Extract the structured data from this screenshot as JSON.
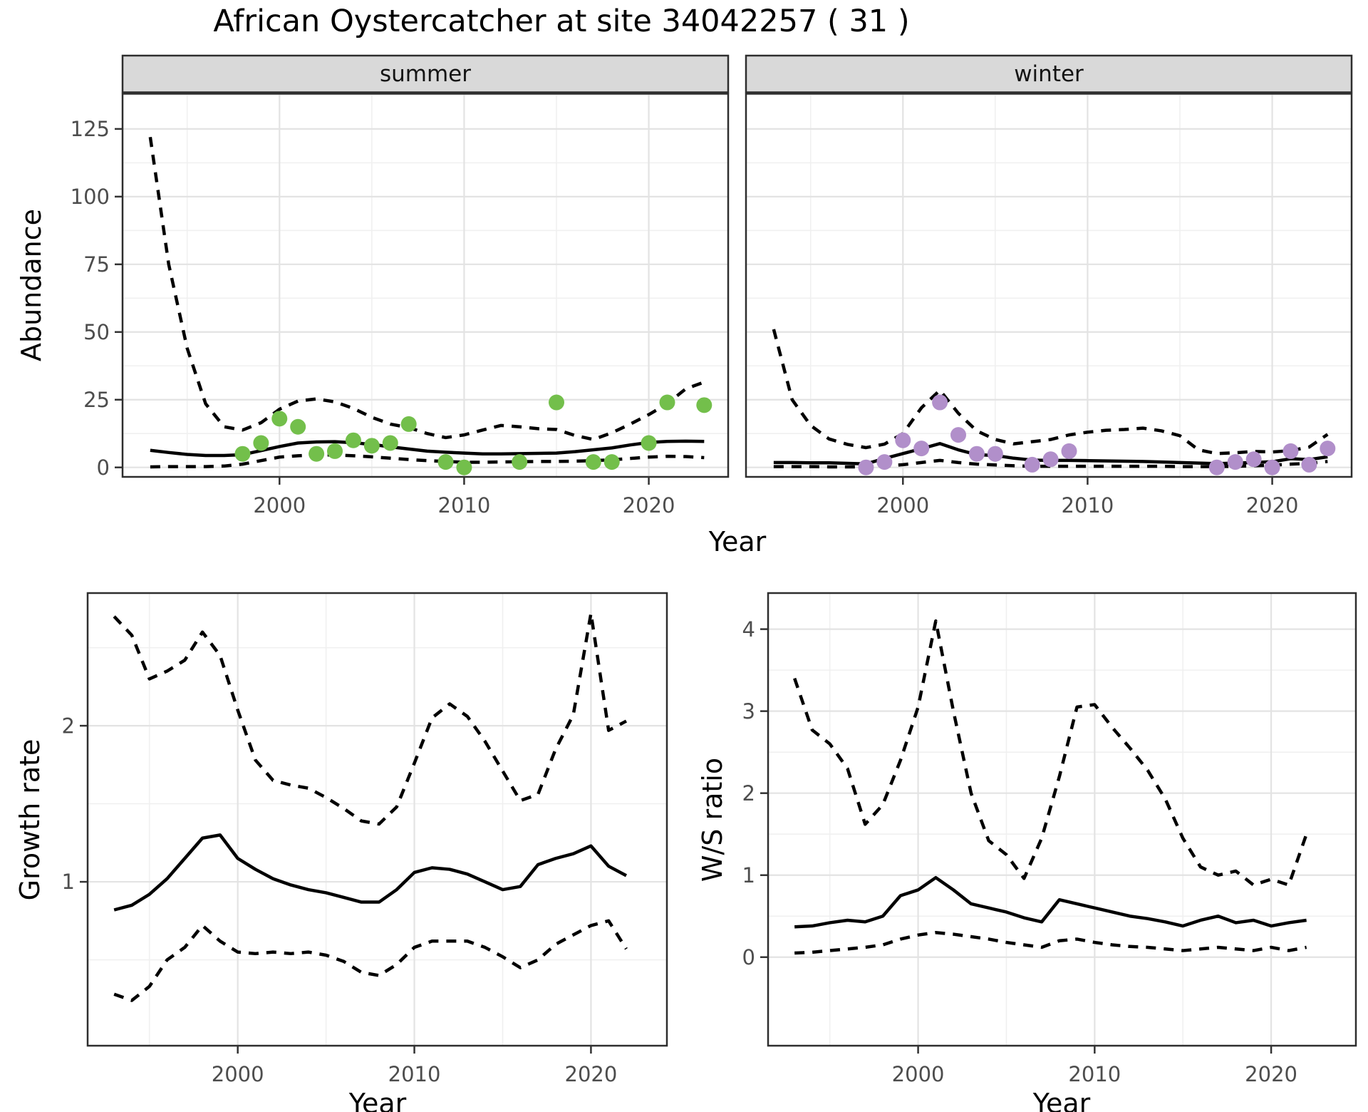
{
  "title": "African Oystercatcher at site 34042257 ( 31 )",
  "chart_data": [
    {
      "id": "abundance",
      "type": "line",
      "xlabel": "Year",
      "ylabel": "Abundance",
      "xlim": [
        1991.5,
        2024.3
      ],
      "ylim": [
        -3.5,
        138
      ],
      "x_ticks": [
        2000,
        2010,
        2020
      ],
      "x_minor": [
        1995,
        2005,
        2015
      ],
      "y_ticks": [
        0,
        25,
        50,
        75,
        100,
        125
      ],
      "y_minor": [
        12.5,
        37.5,
        62.5,
        87.5,
        112.5,
        137.5
      ],
      "grid": true,
      "legend": "none",
      "years": [
        1993,
        1994,
        1995,
        1996,
        1997,
        1998,
        1999,
        2000,
        2001,
        2002,
        2003,
        2004,
        2005,
        2006,
        2007,
        2008,
        2009,
        2010,
        2011,
        2012,
        2013,
        2014,
        2015,
        2016,
        2017,
        2018,
        2019,
        2020,
        2021,
        2022,
        2023
      ],
      "facets": [
        {
          "label": "summer",
          "point_color": "#73bf4b",
          "points_x": [
            1998,
            1999,
            2000,
            2001,
            2002,
            2003,
            2004,
            2005,
            2006,
            2007,
            2009,
            2010,
            2013,
            2015,
            2017,
            2018,
            2020,
            2021,
            2023
          ],
          "points_y": [
            5,
            9,
            18,
            15,
            5,
            6,
            10,
            8,
            9,
            16,
            2,
            0,
            2,
            24,
            2,
            2,
            9,
            24,
            23
          ],
          "fit": [
            6.3,
            5.5,
            4.8,
            4.4,
            4.4,
            4.7,
            6.2,
            7.7,
            9.0,
            9.4,
            9.5,
            9.1,
            8.5,
            7.6,
            6.8,
            6.0,
            5.6,
            5.3,
            5.0,
            5.0,
            5.1,
            5.2,
            5.3,
            5.8,
            6.5,
            7.2,
            8.3,
            9.2,
            9.6,
            9.7,
            9.6
          ],
          "upper": [
            122,
            75,
            44,
            23.5,
            15,
            13.8,
            16.5,
            21.5,
            24.5,
            25.3,
            24.2,
            21.8,
            18.5,
            16.0,
            14.7,
            12.5,
            11.0,
            12.0,
            13.8,
            15.5,
            15.0,
            14.3,
            14.0,
            11.8,
            10.3,
            12.8,
            16.0,
            19.5,
            23.5,
            29.0,
            31.5
          ],
          "lower": [
            0.2,
            0.3,
            0.3,
            0.3,
            0.5,
            1.2,
            2.5,
            3.8,
            4.3,
            4.6,
            4.6,
            4.3,
            3.9,
            3.4,
            2.9,
            2.5,
            2.2,
            1.9,
            1.9,
            2.0,
            2.1,
            2.2,
            2.2,
            2.3,
            2.5,
            2.8,
            3.3,
            3.8,
            4.1,
            4.0,
            3.6
          ]
        },
        {
          "label": "winter",
          "point_color": "#b18fca",
          "points_x": [
            1998,
            1999,
            2000,
            2001,
            2002,
            2003,
            2004,
            2005,
            2007,
            2008,
            2009,
            2017,
            2018,
            2019,
            2020,
            2021,
            2022,
            2023
          ],
          "points_y": [
            0,
            2,
            10,
            7,
            24,
            12,
            5,
            5,
            1,
            3,
            6,
            0,
            2,
            3,
            0,
            6,
            1,
            7
          ],
          "fit": [
            1.8,
            1.8,
            1.7,
            1.7,
            1.5,
            1.3,
            3.3,
            5.1,
            6.9,
            8.8,
            6.5,
            4.7,
            4.4,
            3.4,
            2.7,
            2.6,
            2.6,
            2.5,
            2.4,
            2.3,
            2.2,
            2.0,
            1.8,
            1.6,
            1.4,
            1.6,
            1.8,
            2.1,
            3.2,
            2.9,
            3.9
          ],
          "upper": [
            51,
            25,
            15.5,
            10.5,
            8.5,
            7.3,
            8.6,
            12.5,
            22,
            28.5,
            20,
            13.5,
            10.3,
            8.7,
            9.5,
            10.3,
            12,
            13,
            13.7,
            14,
            14.5,
            13.5,
            11.7,
            6.5,
            5.1,
            5.4,
            5.9,
            5.7,
            6.2,
            7.5,
            12.2
          ],
          "lower": [
            0.3,
            0.3,
            0.3,
            0.2,
            0.2,
            0.2,
            0.5,
            1.0,
            1.8,
            2.6,
            1.8,
            1.2,
            0.9,
            0.6,
            0.4,
            0.4,
            0.4,
            0.4,
            0.4,
            0.4,
            0.4,
            0.4,
            0.3,
            0.3,
            0.3,
            0.4,
            0.6,
            0.8,
            1.2,
            1.5,
            2.2
          ]
        }
      ]
    },
    {
      "id": "growth_rate",
      "type": "line",
      "xlabel": "Year",
      "ylabel": "Growth rate",
      "xlim": [
        1991.5,
        2024.3
      ],
      "ylim": [
        -0.05,
        2.85
      ],
      "x_ticks": [
        2000,
        2010,
        2020
      ],
      "x_minor": [
        1995,
        2005,
        2015
      ],
      "y_ticks": [
        1,
        2
      ],
      "y_minor": [
        0.5,
        1.5,
        2.5
      ],
      "grid": true,
      "legend": "none",
      "years": [
        1993,
        1994,
        1995,
        1996,
        1997,
        1998,
        1999,
        2000,
        2001,
        2002,
        2003,
        2004,
        2005,
        2006,
        2007,
        2008,
        2009,
        2010,
        2011,
        2012,
        2013,
        2014,
        2015,
        2016,
        2017,
        2018,
        2019,
        2020,
        2021,
        2022
      ],
      "fit": [
        0.82,
        0.85,
        0.92,
        1.02,
        1.15,
        1.28,
        1.3,
        1.15,
        1.08,
        1.02,
        0.98,
        0.95,
        0.93,
        0.9,
        0.87,
        0.87,
        0.95,
        1.06,
        1.09,
        1.08,
        1.05,
        1.0,
        0.95,
        0.97,
        1.11,
        1.15,
        1.18,
        1.23,
        1.1,
        1.04
      ],
      "upper": [
        2.7,
        2.58,
        2.3,
        2.35,
        2.42,
        2.6,
        2.45,
        2.1,
        1.78,
        1.65,
        1.62,
        1.6,
        1.54,
        1.47,
        1.39,
        1.37,
        1.48,
        1.76,
        2.05,
        2.14,
        2.06,
        1.9,
        1.71,
        1.52,
        1.56,
        1.85,
        2.07,
        2.72,
        1.97,
        2.03
      ],
      "lower": [
        0.28,
        0.24,
        0.33,
        0.5,
        0.58,
        0.72,
        0.62,
        0.55,
        0.54,
        0.55,
        0.54,
        0.55,
        0.53,
        0.49,
        0.42,
        0.4,
        0.47,
        0.58,
        0.62,
        0.62,
        0.62,
        0.58,
        0.52,
        0.45,
        0.5,
        0.6,
        0.66,
        0.72,
        0.75,
        0.57
      ]
    },
    {
      "id": "ws_ratio",
      "type": "line",
      "xlabel": "Year",
      "ylabel": "W/S ratio",
      "xlim": [
        1991.5,
        2024.8
      ],
      "ylim": [
        -1.08,
        4.44
      ],
      "x_ticks": [
        2000,
        2010,
        2020
      ],
      "x_minor": [
        1995,
        2005,
        2015
      ],
      "y_ticks": [
        0,
        1,
        2,
        3,
        4
      ],
      "y_minor": [
        0.5,
        1.5,
        2.5,
        3.5
      ],
      "grid": true,
      "legend": "none",
      "years": [
        1993,
        1994,
        1995,
        1996,
        1997,
        1998,
        1999,
        2000,
        2001,
        2002,
        2003,
        2004,
        2005,
        2006,
        2007,
        2008,
        2009,
        2010,
        2011,
        2012,
        2013,
        2014,
        2015,
        2016,
        2017,
        2018,
        2019,
        2020,
        2021,
        2022
      ],
      "fit": [
        0.37,
        0.38,
        0.42,
        0.45,
        0.43,
        0.5,
        0.75,
        0.82,
        0.97,
        0.82,
        0.65,
        0.6,
        0.55,
        0.48,
        0.43,
        0.7,
        0.65,
        0.6,
        0.55,
        0.5,
        0.47,
        0.43,
        0.38,
        0.45,
        0.5,
        0.42,
        0.45,
        0.38,
        0.42,
        0.45
      ],
      "upper": [
        3.4,
        2.77,
        2.6,
        2.3,
        1.62,
        1.86,
        2.4,
        3.05,
        4.1,
        3.0,
        2.0,
        1.42,
        1.25,
        0.96,
        1.45,
        2.2,
        3.05,
        3.08,
        2.8,
        2.55,
        2.28,
        1.93,
        1.45,
        1.1,
        1.0,
        1.05,
        0.88,
        0.95,
        0.88,
        1.5
      ],
      "lower": [
        0.05,
        0.06,
        0.08,
        0.1,
        0.12,
        0.15,
        0.22,
        0.27,
        0.3,
        0.28,
        0.25,
        0.22,
        0.18,
        0.15,
        0.12,
        0.2,
        0.22,
        0.18,
        0.15,
        0.13,
        0.12,
        0.1,
        0.08,
        0.1,
        0.12,
        0.1,
        0.08,
        0.12,
        0.08,
        0.12
      ]
    }
  ],
  "style": {
    "line_color": "#000000",
    "strip_fill": "#d9d9d9",
    "panel_border": "#2e2e2e",
    "grid_major": "#e3e3e3",
    "grid_minor": "#f0f0f0",
    "tick_label_color": "#4d4d4d"
  }
}
